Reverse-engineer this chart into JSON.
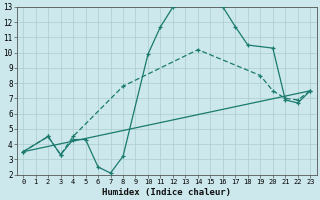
{
  "xlabel": "Humidex (Indice chaleur)",
  "xlim": [
    -0.5,
    23.5
  ],
  "ylim": [
    2,
    13
  ],
  "xticks": [
    0,
    1,
    2,
    3,
    4,
    5,
    6,
    7,
    8,
    9,
    10,
    11,
    12,
    13,
    14,
    15,
    16,
    17,
    18,
    19,
    20,
    21,
    22,
    23
  ],
  "yticks": [
    2,
    3,
    4,
    5,
    6,
    7,
    8,
    9,
    10,
    11,
    12,
    13
  ],
  "color": "#1a7a6e",
  "bg_color": "#cce8ec",
  "grid_color": "#aacccc",
  "line1_x": [
    0,
    2,
    3,
    4,
    5,
    6,
    7,
    8,
    10,
    11,
    12,
    13,
    14,
    15,
    16,
    17,
    18,
    20,
    21,
    22,
    23
  ],
  "line1_y": [
    3.5,
    4.5,
    3.3,
    4.3,
    4.3,
    2.5,
    2.1,
    3.2,
    9.9,
    11.7,
    13.0,
    13.2,
    13.2,
    13.2,
    13.0,
    11.7,
    10.5,
    10.3,
    6.9,
    6.7,
    7.5
  ],
  "line2_x": [
    0,
    2,
    3,
    4,
    8,
    14,
    19,
    20,
    21,
    22,
    23
  ],
  "line2_y": [
    3.5,
    4.5,
    3.3,
    4.5,
    7.8,
    10.2,
    8.5,
    7.5,
    7.0,
    6.9,
    7.5
  ],
  "line3_x": [
    0,
    23
  ],
  "line3_y": [
    3.5,
    7.5
  ]
}
